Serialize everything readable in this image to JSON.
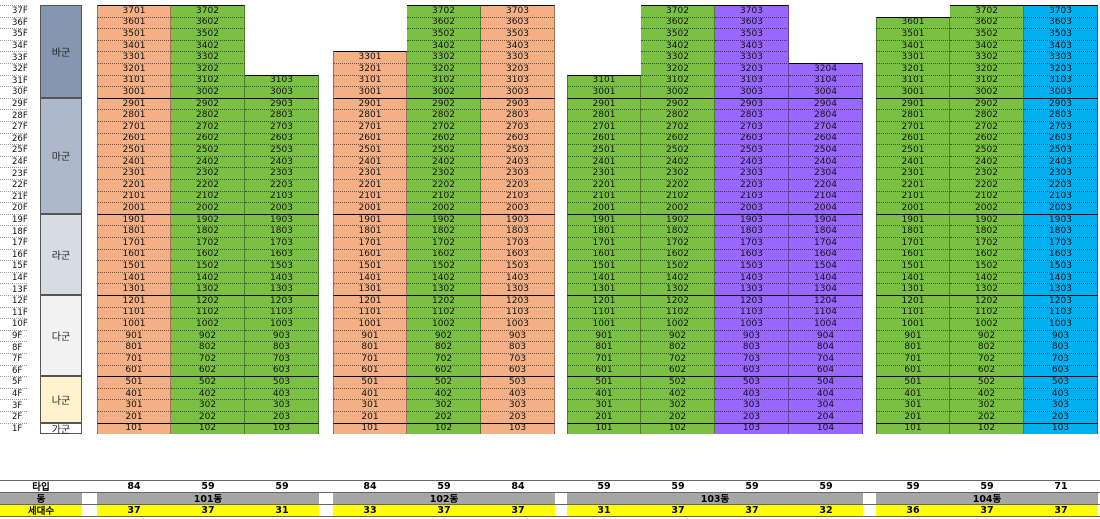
{
  "floors": [
    "37F",
    "36F",
    "35F",
    "34F",
    "33F",
    "32F",
    "31F",
    "30F",
    "29F",
    "28F",
    "27F",
    "26F",
    "25F",
    "24F",
    "23F",
    "22F",
    "21F",
    "20F",
    "19F",
    "18F",
    "17F",
    "16F",
    "15F",
    "14F",
    "13F",
    "12F",
    "11F",
    "10F",
    "9F",
    "8F",
    "7F",
    "6F",
    "5F",
    "4F",
    "3F",
    "2F",
    "1F"
  ],
  "groups": [
    {
      "label": "바군",
      "top": 37,
      "bottom": 30,
      "color": "#8496b0"
    },
    {
      "label": "마군",
      "top": 29,
      "bottom": 20,
      "color": "#adb9ca"
    },
    {
      "label": "라군",
      "top": 19,
      "bottom": 13,
      "color": "#d6dce4"
    },
    {
      "label": "다군",
      "top": 12,
      "bottom": 6,
      "color": "#f2f2f2"
    },
    {
      "label": "나군",
      "top": 5,
      "bottom": 2,
      "color": "#fff2cc"
    },
    {
      "label": "가군",
      "top": 1,
      "bottom": 1,
      "color": "#ffffff"
    }
  ],
  "colors": {
    "salmon": "#f4b084",
    "green": "#7ac143",
    "purple": "#9966ff",
    "blue": "#00b0f0",
    "yellow": "#ffff00",
    "grey": "#a6a6a6"
  },
  "row_labels": {
    "type": "타입",
    "dong": "동",
    "households": "세대수"
  },
  "buildings": [
    {
      "dong": "101동",
      "columns": [
        {
          "line": 1,
          "top": 37,
          "color": "salmon",
          "type": "84",
          "households": "37"
        },
        {
          "line": 2,
          "top": 37,
          "color": "green",
          "type": "59",
          "households": "37"
        },
        {
          "line": 3,
          "top": 31,
          "color": "green",
          "type": "59",
          "households": "31"
        }
      ]
    },
    {
      "dong": "102동",
      "columns": [
        {
          "line": 1,
          "top": 33,
          "color": "salmon",
          "type": "84",
          "households": "33"
        },
        {
          "line": 2,
          "top": 37,
          "color": "green",
          "type": "59",
          "households": "37"
        },
        {
          "line": 3,
          "top": 37,
          "color": "salmon",
          "type": "84",
          "households": "37"
        }
      ]
    },
    {
      "dong": "103동",
      "columns": [
        {
          "line": 1,
          "top": 31,
          "color": "green",
          "type": "59",
          "households": "31"
        },
        {
          "line": 2,
          "top": 37,
          "color": "green",
          "type": "59",
          "households": "37"
        },
        {
          "line": 3,
          "top": 37,
          "color": "purple",
          "type": "59",
          "households": "37"
        },
        {
          "line": 4,
          "top": 32,
          "color": "purple",
          "type": "59",
          "households": "32"
        }
      ]
    },
    {
      "dong": "104동",
      "columns": [
        {
          "line": 1,
          "top": 36,
          "color": "green",
          "type": "59",
          "households": "36"
        },
        {
          "line": 2,
          "top": 37,
          "color": "green",
          "type": "59",
          "households": "37"
        },
        {
          "line": 3,
          "top": 37,
          "color": "blue",
          "type": "71",
          "households": "37"
        }
      ]
    }
  ]
}
